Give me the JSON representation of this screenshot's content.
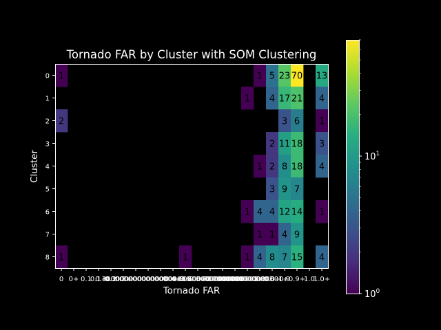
{
  "chart_data": {
    "type": "heatmap",
    "title": "Tornado FAR by Cluster with SOM Clustering",
    "xlabel": "Tornado FAR",
    "ylabel": "Cluster",
    "x_categories": [
      "0",
      "0+",
      "0.1",
      "0.1+",
      "0.2",
      "0.2+",
      "0.3",
      "0.3+",
      "0.4",
      "0.4+",
      "0.5",
      "0.5+",
      "0.6",
      "0.6+",
      "0.7",
      "0.7+",
      "0.8",
      "0.8+",
      "0.9",
      "0.9+",
      "1.0",
      "1.0+"
    ],
    "x_tick_labels": [
      "0",
      "0+",
      "0.1",
      "0.1+",
      "0.2",
      "0.2+",
      "0.30000000000000004",
      "0.30000000000000004+",
      "0.4",
      "0.4+",
      "0.5",
      "0.5+",
      "0.6000000000000001",
      "0.6000000000000001+",
      "0.7000000000000001",
      "0.7000000000000001+",
      "0.8",
      "0.8+",
      "0.9",
      "0.9+",
      "1.0",
      "1.0+"
    ],
    "y_categories": [
      "0",
      "1",
      "2",
      "3",
      "4",
      "5",
      "6",
      "7",
      "8"
    ],
    "cells": [
      {
        "row": "0",
        "col": "0",
        "value": 1
      },
      {
        "row": "0",
        "col": "0.8",
        "value": 1
      },
      {
        "row": "0",
        "col": "0.8+",
        "value": 5
      },
      {
        "row": "0",
        "col": "0.9",
        "value": 23
      },
      {
        "row": "0",
        "col": "0.9+",
        "value": 70
      },
      {
        "row": "0",
        "col": "1.0+",
        "value": 13
      },
      {
        "row": "1",
        "col": "0.7+",
        "value": 1
      },
      {
        "row": "1",
        "col": "0.8+",
        "value": 4
      },
      {
        "row": "1",
        "col": "0.9",
        "value": 17
      },
      {
        "row": "1",
        "col": "0.9+",
        "value": 21
      },
      {
        "row": "1",
        "col": "1.0+",
        "value": 4
      },
      {
        "row": "2",
        "col": "0",
        "value": 2
      },
      {
        "row": "2",
        "col": "0.9",
        "value": 3
      },
      {
        "row": "2",
        "col": "0.9+",
        "value": 6
      },
      {
        "row": "2",
        "col": "1.0+",
        "value": 1
      },
      {
        "row": "3",
        "col": "0.8+",
        "value": 2
      },
      {
        "row": "3",
        "col": "0.9",
        "value": 11
      },
      {
        "row": "3",
        "col": "0.9+",
        "value": 18
      },
      {
        "row": "3",
        "col": "1.0+",
        "value": 3
      },
      {
        "row": "4",
        "col": "0.8",
        "value": 1
      },
      {
        "row": "4",
        "col": "0.8+",
        "value": 2
      },
      {
        "row": "4",
        "col": "0.9",
        "value": 8
      },
      {
        "row": "4",
        "col": "0.9+",
        "value": 18
      },
      {
        "row": "4",
        "col": "1.0+",
        "value": 4
      },
      {
        "row": "5",
        "col": "0.8+",
        "value": 3
      },
      {
        "row": "5",
        "col": "0.9",
        "value": 9
      },
      {
        "row": "5",
        "col": "0.9+",
        "value": 7
      },
      {
        "row": "6",
        "col": "0.7+",
        "value": 1
      },
      {
        "row": "6",
        "col": "0.8",
        "value": 4
      },
      {
        "row": "6",
        "col": "0.8+",
        "value": 4
      },
      {
        "row": "6",
        "col": "0.9",
        "value": 12
      },
      {
        "row": "6",
        "col": "0.9+",
        "value": 14
      },
      {
        "row": "6",
        "col": "1.0+",
        "value": 1
      },
      {
        "row": "7",
        "col": "0.8",
        "value": 1
      },
      {
        "row": "7",
        "col": "0.8+",
        "value": 1
      },
      {
        "row": "7",
        "col": "0.9",
        "value": 4
      },
      {
        "row": "7",
        "col": "0.9+",
        "value": 9
      },
      {
        "row": "8",
        "col": "0",
        "value": 1
      },
      {
        "row": "8",
        "col": "0.5",
        "value": 1
      },
      {
        "row": "8",
        "col": "0.7+",
        "value": 1
      },
      {
        "row": "8",
        "col": "0.8",
        "value": 4
      },
      {
        "row": "8",
        "col": "0.8+",
        "value": 8
      },
      {
        "row": "8",
        "col": "0.9",
        "value": 7
      },
      {
        "row": "8",
        "col": "0.9+",
        "value": 15
      },
      {
        "row": "8",
        "col": "1.0+",
        "value": 4
      }
    ],
    "colorbar": {
      "scale": "log",
      "colormap": "viridis",
      "range": [
        1,
        70
      ],
      "ticks": [
        {
          "base": "10",
          "exp": "0",
          "value": 1
        },
        {
          "base": "10",
          "exp": "1",
          "value": 10
        }
      ]
    },
    "background": "#000000",
    "text_color": "#ffffff",
    "grid": false,
    "legend": "colorbar-right"
  }
}
